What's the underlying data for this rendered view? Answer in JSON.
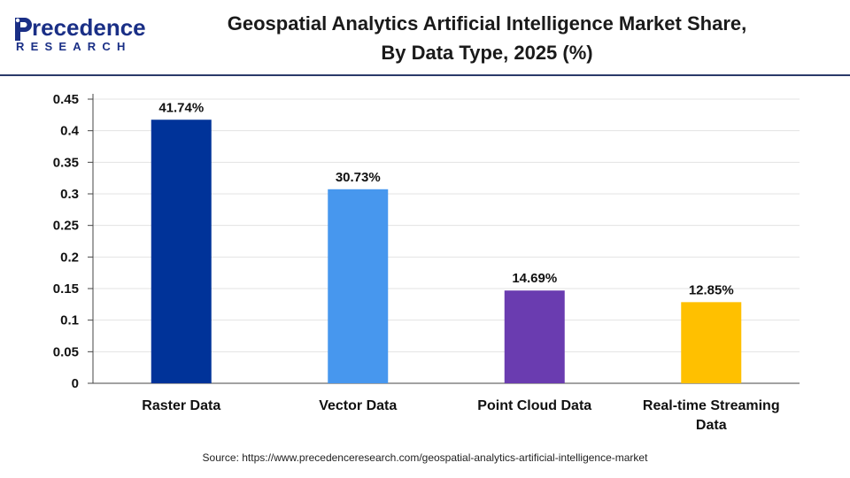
{
  "brand": {
    "name_rest": "recedence",
    "sub": "RESEARCH",
    "color": "#1a2f86"
  },
  "header": {
    "title_line1": "Geospatial Analytics Artificial Intelligence Market Share,",
    "title_line2": "By Data Type, 2025 (%)"
  },
  "source": "Source: https://www.precedenceresearch.com/geospatial-analytics-artificial-intelligence-market",
  "chart_data": {
    "type": "bar",
    "title": "Geospatial Analytics Artificial Intelligence Market Share, By Data Type, 2025 (%)",
    "xlabel": "",
    "ylabel": "",
    "categories": [
      "Raster Data",
      "Vector Data",
      "Point Cloud Data",
      "Real-time Streaming Data"
    ],
    "category_lines": [
      [
        "Raster Data"
      ],
      [
        "Vector Data"
      ],
      [
        "Point Cloud Data"
      ],
      [
        "Real-time Streaming",
        "Data"
      ]
    ],
    "values": [
      0.4174,
      0.3073,
      0.1469,
      0.1285
    ],
    "data_labels": [
      "41.74%",
      "30.73%",
      "14.69%",
      "12.85%"
    ],
    "colors": [
      "#003399",
      "#4797ee",
      "#6a3cb0",
      "#ffc000"
    ],
    "ylim": [
      0,
      0.45
    ],
    "yticks": [
      "0",
      "0.05",
      "0.1",
      "0.15",
      "0.2",
      "0.25",
      "0.3",
      "0.35",
      "0.4",
      "0.45"
    ],
    "grid": true,
    "legend": "none"
  }
}
